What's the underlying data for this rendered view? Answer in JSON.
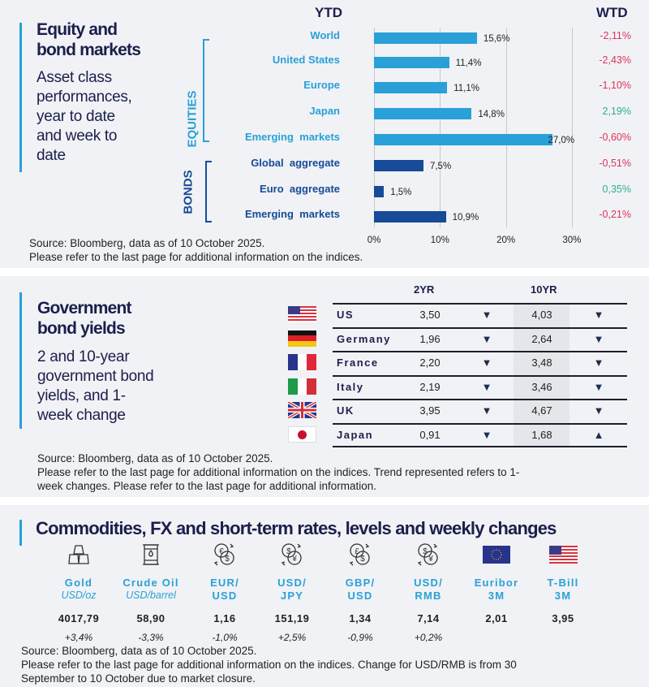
{
  "equity": {
    "title_line1": "Equity and",
    "title_line2": "bond markets",
    "subtitle": [
      "Asset class",
      "performances,",
      "year to date",
      "and week to",
      "date"
    ],
    "ytd_header": "YTD",
    "wtd_header": "WTD",
    "group_equities": "EQUITIES",
    "group_bonds": "BONDS",
    "source": "Source: Bloomberg, data as of 10 October 2025.",
    "note": "Please refer to the last page for additional information on the indices."
  },
  "chart_data": {
    "type": "bar",
    "orientation": "horizontal",
    "xlim": [
      0,
      30
    ],
    "ticks": [
      "0%",
      "10%",
      "20%",
      "30%"
    ],
    "grid": true,
    "categories": [
      "World",
      "United States",
      "Europe",
      "Japan",
      "Emerging  markets",
      "Global  aggregate",
      "Euro  aggregate",
      "Emerging  markets"
    ],
    "groups": [
      "EQUITIES",
      "EQUITIES",
      "EQUITIES",
      "EQUITIES",
      "EQUITIES",
      "BONDS",
      "BONDS",
      "BONDS"
    ],
    "values": [
      15.6,
      11.4,
      11.1,
      14.8,
      27.0,
      7.5,
      1.5,
      10.9
    ],
    "value_labels": [
      "15,6%",
      "11,4%",
      "11,1%",
      "14,8%",
      "27,0%",
      "7,5%",
      "1,5%",
      "10,9%"
    ],
    "wtd": [
      "-2,11%",
      "-2,43%",
      "-1,10%",
      "2,19%",
      "-0,60%",
      "-0,51%",
      "0,35%",
      "-0,21%"
    ],
    "colors": {
      "equities": "#29a0d8",
      "bonds": "#174a97",
      "negative": "#e0325a",
      "positive": "#2fae96"
    }
  },
  "gov": {
    "title_line1": "Government",
    "title_line2": "bond yields",
    "subtitle": [
      "2 and 10-year",
      "government bond",
      "yields, and 1-",
      "week change"
    ],
    "col_2yr": "2YR",
    "col_10yr": "10YR",
    "rows": [
      {
        "country": "US",
        "flag": "us-flag",
        "y2": "3,50",
        "d2": "down",
        "y10": "4,03",
        "d10": "down"
      },
      {
        "country": "Germany",
        "flag": "germany-flag",
        "y2": "1,96",
        "d2": "down",
        "y10": "2,64",
        "d10": "down"
      },
      {
        "country": "France",
        "flag": "france-flag",
        "y2": "2,20",
        "d2": "down",
        "y10": "3,48",
        "d10": "down"
      },
      {
        "country": "Italy",
        "flag": "italy-flag",
        "y2": "2,19",
        "d2": "down",
        "y10": "3,46",
        "d10": "down"
      },
      {
        "country": "UK",
        "flag": "uk-flag",
        "y2": "3,95",
        "d2": "down",
        "y10": "4,67",
        "d10": "down"
      },
      {
        "country": "Japan",
        "flag": "japan-flag",
        "y2": "0,91",
        "d2": "down",
        "y10": "1,68",
        "d10": "up"
      }
    ],
    "source": "Source: Bloomberg, data as of 10 October 2025.",
    "note1": "Please refer to the last page for additional information on the indices. Trend represented refers to 1-",
    "note2": "week changes. Please refer to the last page for additional information."
  },
  "comm": {
    "title": "Commodities, FX and short-term rates, levels and weekly changes",
    "items": [
      {
        "l1": "Gold",
        "unit": "USD/oz",
        "value": "4017,79",
        "change": "+3,4%",
        "icon": "gold-bars-icon"
      },
      {
        "l1": "Crude Oil",
        "unit": "USD/barrel",
        "value": "58,90",
        "change": "-3,3%",
        "icon": "oil-barrel-icon"
      },
      {
        "l1": "EUR/",
        "l2": "USD",
        "value": "1,16",
        "change": "-1,0%",
        "icon": "currency-exchange-icon",
        "sym": "€$"
      },
      {
        "l1": "USD/",
        "l2": "JPY",
        "value": "151,19",
        "change": "+2,5%",
        "icon": "currency-exchange-icon",
        "sym": "$¥"
      },
      {
        "l1": "GBP/",
        "l2": "USD",
        "value": "1,34",
        "change": "-0,9%",
        "icon": "currency-exchange-icon",
        "sym": "£$"
      },
      {
        "l1": "USD/",
        "l2": "RMB",
        "value": "7,14",
        "change": "+0,2%",
        "icon": "currency-exchange-icon",
        "sym": "$¥"
      },
      {
        "l1": "Euribor",
        "l2": "3M",
        "value": "2,01",
        "icon": "eu-flag-icon"
      },
      {
        "l1": "T-Bill",
        "l2": "3M",
        "value": "3,95",
        "icon": "us-flag-icon"
      }
    ],
    "source": "Source: Bloomberg, data as of 10 October 2025.",
    "note1": "Please refer to the last page for additional information on the indices. Change for USD/RMB is from 30",
    "note2": "September to 10 October due to market closure."
  }
}
